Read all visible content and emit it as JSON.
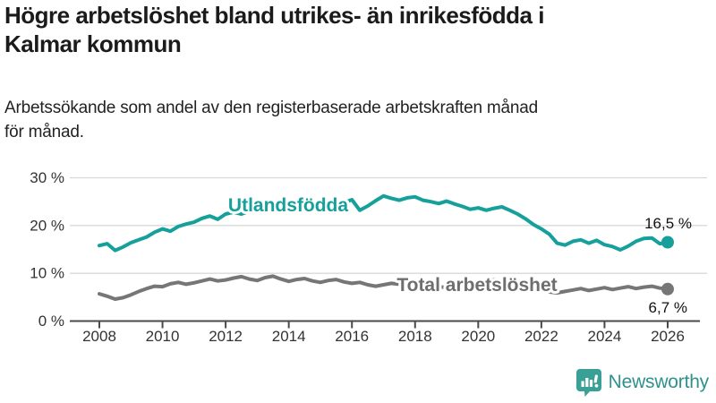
{
  "header": {
    "title_lines": [
      "Högre arbetslöshet bland utrikes- än inrikesfödda i",
      "Kalmar kommun"
    ],
    "subtitle_lines": [
      "Arbetssökande som andel av den registerbaserade arbetskraften månad",
      "för månad."
    ]
  },
  "footer": {
    "brand": "Newsworthy",
    "brand_text_color": "#2f918c",
    "brand_icon_color": "#3aa096"
  },
  "chart_data": {
    "type": "line",
    "title": "Högre arbetslöshet bland utrikes- än inrikesfödda i Kalmar kommun",
    "subtitle": "Arbetssökande som andel av den registerbaserade arbetskraften månad för månad.",
    "xlabel": "",
    "ylabel": "",
    "xlim": [
      2008,
      2026
    ],
    "ylim": [
      0,
      30
    ],
    "grid": "horizontal",
    "legend_position": "inline-labels",
    "x_ticks": [
      2008,
      2010,
      2012,
      2014,
      2016,
      2018,
      2020,
      2022,
      2024,
      2026
    ],
    "y_ticks": [
      {
        "value": 0,
        "label": "0 %"
      },
      {
        "value": 10,
        "label": "10 %"
      },
      {
        "value": 20,
        "label": "20 %"
      },
      {
        "value": 30,
        "label": "30 %"
      }
    ],
    "axis_color": "#4a4a4a",
    "grid_color": "#d9d9d9",
    "tick_text_color": "#333333",
    "value_label_color": "#111111",
    "series": [
      {
        "name": "Utlandsfödda",
        "color": "#16a09b",
        "label_color": "#16a09b",
        "end_label": "16,5 %",
        "end_value": 16.5,
        "x_start": 2008,
        "x_step": 0.25,
        "values": [
          15.8,
          16.2,
          14.8,
          15.5,
          16.4,
          17.0,
          17.6,
          18.6,
          19.3,
          18.8,
          19.8,
          20.3,
          20.7,
          21.5,
          22.0,
          21.3,
          22.4,
          22.8,
          22.4,
          23.0,
          23.3,
          22.9,
          23.5,
          23.8,
          23.5,
          24.0,
          24.3,
          23.9,
          24.3,
          24.6,
          24.3,
          24.8,
          25.4,
          23.2,
          24.1,
          25.2,
          26.2,
          25.7,
          25.3,
          25.8,
          26.0,
          25.3,
          25.0,
          24.6,
          25.1,
          24.5,
          24.0,
          23.4,
          23.7,
          23.2,
          23.6,
          23.9,
          23.2,
          22.4,
          21.4,
          20.2,
          19.3,
          18.2,
          16.3,
          15.9,
          16.7,
          17.0,
          16.3,
          16.9,
          16.0,
          15.6,
          14.9,
          15.7,
          16.7,
          17.3,
          17.4,
          16.2,
          16.5
        ]
      },
      {
        "name": "Total arbetslöshet",
        "color": "#767676",
        "label_color": "#6e6e6e",
        "end_label": "6,7 %",
        "end_value": 6.7,
        "x_start": 2008,
        "x_step": 0.25,
        "values": [
          5.7,
          5.2,
          4.6,
          4.9,
          5.5,
          6.2,
          6.8,
          7.3,
          7.2,
          7.8,
          8.1,
          7.7,
          8.0,
          8.4,
          8.8,
          8.4,
          8.6,
          9.0,
          9.3,
          8.8,
          8.5,
          9.1,
          9.4,
          8.8,
          8.3,
          8.7,
          8.9,
          8.4,
          8.1,
          8.5,
          8.7,
          8.2,
          7.9,
          8.1,
          7.6,
          7.3,
          7.6,
          7.9,
          7.7,
          7.3,
          7.1,
          7.4,
          7.6,
          7.2,
          7.0,
          7.3,
          7.5,
          7.2,
          7.4,
          8.3,
          8.6,
          8.3,
          8.0,
          7.7,
          7.3,
          6.8,
          6.4,
          6.1,
          5.9,
          6.2,
          6.5,
          6.8,
          6.4,
          6.7,
          7.0,
          6.6,
          6.9,
          7.2,
          6.8,
          7.1,
          7.3,
          6.9,
          6.7
        ]
      }
    ]
  }
}
